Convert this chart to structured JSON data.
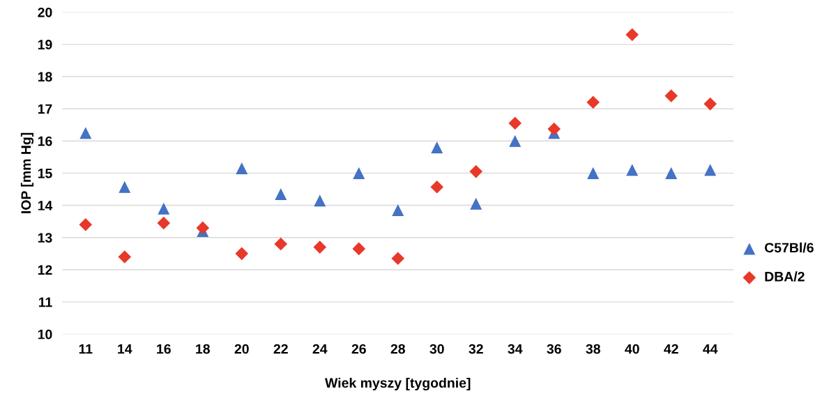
{
  "chart_data": {
    "type": "scatter",
    "xlabel": "Wiek myszy [tygodnie]",
    "ylabel": "IOP [mm Hg]",
    "categories": [
      "11",
      "14",
      "16",
      "18",
      "20",
      "22",
      "24",
      "26",
      "28",
      "30",
      "32",
      "34",
      "36",
      "38",
      "40",
      "42",
      "44"
    ],
    "series": [
      {
        "name": "C57Bl/6",
        "color": "#4472c4",
        "marker": "triangle",
        "values": [
          16.25,
          14.57,
          13.9,
          13.2,
          15.15,
          14.35,
          14.15,
          15.0,
          13.85,
          15.8,
          14.05,
          16.0,
          16.25,
          15.0,
          15.1,
          15.0,
          15.1
        ]
      },
      {
        "name": "DBA/2",
        "color": "#e8382a",
        "marker": "diamond",
        "values": [
          13.4,
          12.4,
          13.45,
          13.3,
          12.5,
          12.8,
          12.7,
          12.65,
          12.35,
          14.57,
          15.05,
          16.55,
          16.37,
          17.2,
          19.3,
          17.4,
          17.15
        ]
      }
    ],
    "ylim": [
      10,
      20
    ],
    "yticks": [
      10,
      11,
      12,
      13,
      14,
      15,
      16,
      17,
      18,
      19,
      20
    ],
    "grid": "y",
    "legend": "right"
  }
}
